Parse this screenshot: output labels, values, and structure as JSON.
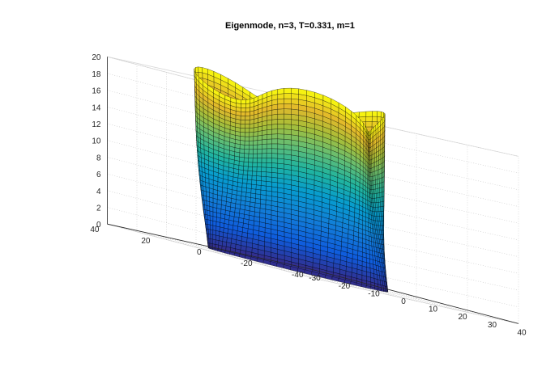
{
  "chart_data": {
    "type": "surface3d",
    "title": "Eigenmode, n=3, T=0.331, m=1",
    "xlabel": "",
    "ylabel": "",
    "zlabel": "",
    "colormap": "parula",
    "grid": true,
    "box": true,
    "mesh_color": "#000000",
    "x_ticks": [
      -30,
      -20,
      -10,
      0,
      10,
      20,
      30,
      40
    ],
    "y_ticks": [
      -40,
      -20,
      0,
      20,
      40
    ],
    "z_ticks": [
      0,
      2,
      4,
      6,
      8,
      10,
      12,
      14,
      16,
      18,
      20
    ],
    "xlim": [
      -30,
      40
    ],
    "ylim": [
      -40,
      40
    ],
    "zlim": [
      0,
      20
    ],
    "shape": {
      "base_radius": 23,
      "height": 20,
      "mode_number": 3,
      "top_deformation": 4,
      "mid_deformation": 2,
      "grid_theta": 80,
      "grid_z": 36
    },
    "colors": {
      "low": "#352a87",
      "mid": "#21b59e",
      "high": "#f9fb0e"
    }
  }
}
